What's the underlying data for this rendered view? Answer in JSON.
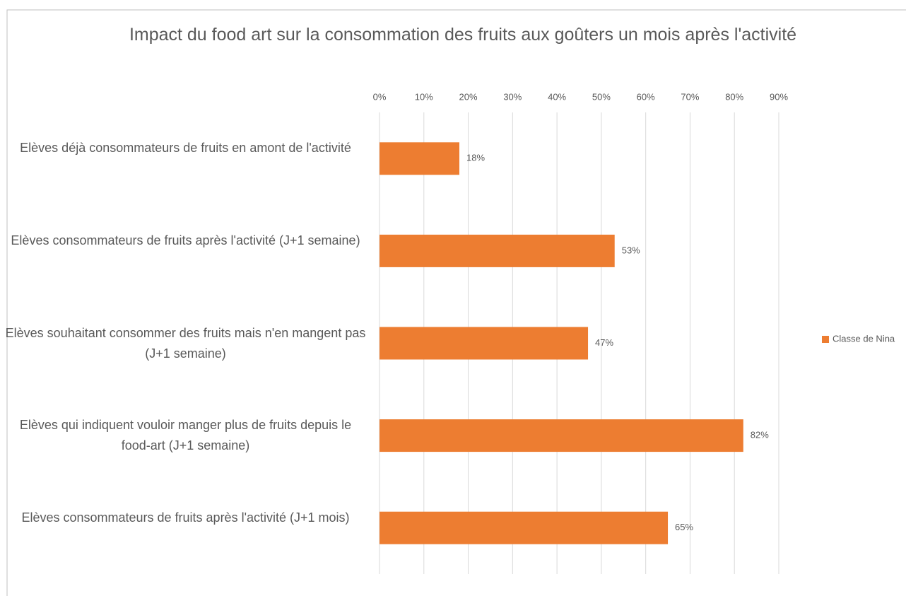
{
  "chart_data": {
    "type": "bar",
    "orientation": "horizontal",
    "title": "Impact du food art sur la consommation des fruits aux goûters un mois après l'activité",
    "categories": [
      "Elèves déjà consommateurs de fruits en amont de l'activité",
      "Elèves consommateurs de fruits après l'activité (J+1 semaine)",
      "Elèves souhaitant consommer des fruits mais n'en mangent pas (J+1 semaine)",
      "Elèves qui indiquent vouloir manger plus de fruits depuis le food-art (J+1 semaine)",
      "Elèves consommateurs de fruits après l'activité (J+1 mois)"
    ],
    "series": [
      {
        "name": "Classe de Nina",
        "color": "#ed7d31",
        "values": [
          18,
          53,
          47,
          82,
          65
        ],
        "value_labels": [
          "18%",
          "53%",
          "47%",
          "82%",
          "65%"
        ]
      }
    ],
    "xlim": [
      0,
      90
    ],
    "xticks": [
      {
        "value": 0,
        "label": "0%"
      },
      {
        "value": 10,
        "label": "10%"
      },
      {
        "value": 20,
        "label": "20%"
      },
      {
        "value": 30,
        "label": "30%"
      },
      {
        "value": 40,
        "label": "40%"
      },
      {
        "value": 50,
        "label": "50%"
      },
      {
        "value": 60,
        "label": "60%"
      },
      {
        "value": 70,
        "label": "70%"
      },
      {
        "value": 80,
        "label": "80%"
      },
      {
        "value": 90,
        "label": "90%"
      }
    ],
    "grid": true,
    "legend": "right"
  }
}
